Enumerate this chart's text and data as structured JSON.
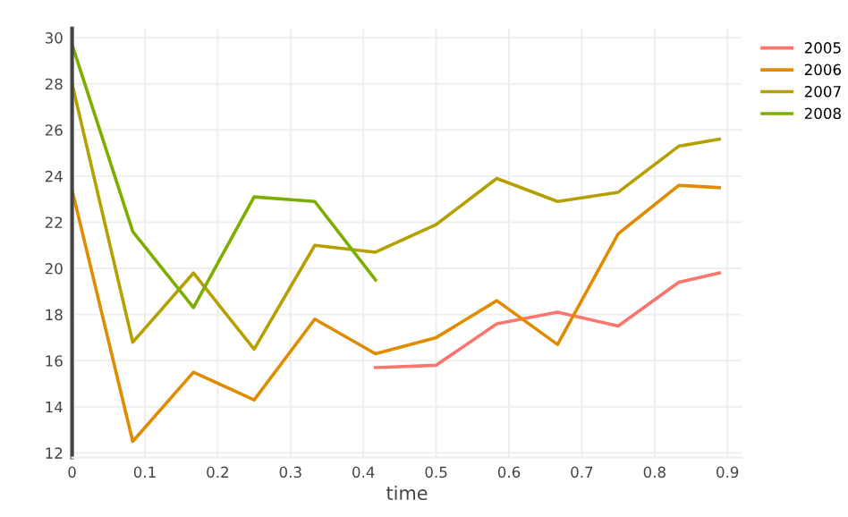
{
  "chart_data": {
    "type": "line",
    "xlabel": "time",
    "xlim": [
      0,
      0.92
    ],
    "ylim": [
      11.8,
      30.4
    ],
    "xticks": [
      0,
      0.1,
      0.2,
      0.3,
      0.4,
      0.5,
      0.6,
      0.7,
      0.8,
      0.9
    ],
    "yticks": [
      12,
      14,
      16,
      18,
      20,
      22,
      24,
      26,
      28,
      30
    ],
    "grid": true,
    "legend": "top right",
    "marker": "none",
    "line_style": "solid",
    "series": [
      {
        "name": "2005",
        "color": "#f8766d",
        "x": [
          0.4167,
          0.5,
          0.5833,
          0.6667,
          0.75,
          0.8333,
          0.8889
        ],
        "values": [
          15.7,
          15.8,
          17.6,
          18.1,
          17.5,
          19.4,
          19.8
        ]
      },
      {
        "name": "2006",
        "color": "#e08b00",
        "x": [
          0,
          0.0833,
          0.1667,
          0.25,
          0.3333,
          0.4167,
          0.5,
          0.5833,
          0.6667,
          0.75,
          0.8333,
          0.8889
        ],
        "values": [
          23.4,
          12.5,
          15.5,
          14.3,
          17.8,
          16.3,
          17.0,
          18.6,
          16.7,
          21.5,
          23.6,
          23.5
        ]
      },
      {
        "name": "2007",
        "color": "#b5a000",
        "x": [
          0,
          0.0833,
          0.1667,
          0.25,
          0.3333,
          0.4167,
          0.5,
          0.5833,
          0.6667,
          0.75,
          0.8333,
          0.8889
        ],
        "values": [
          28.0,
          16.8,
          19.8,
          16.5,
          21.0,
          20.7,
          21.9,
          23.9,
          22.9,
          23.3,
          25.3,
          25.6
        ]
      },
      {
        "name": "2008",
        "color": "#7cae00",
        "x": [
          0,
          0.0833,
          0.1667,
          0.25,
          0.3333,
          0.4167
        ],
        "values": [
          29.7,
          21.6,
          18.3,
          23.1,
          22.9,
          19.5
        ]
      }
    ]
  }
}
